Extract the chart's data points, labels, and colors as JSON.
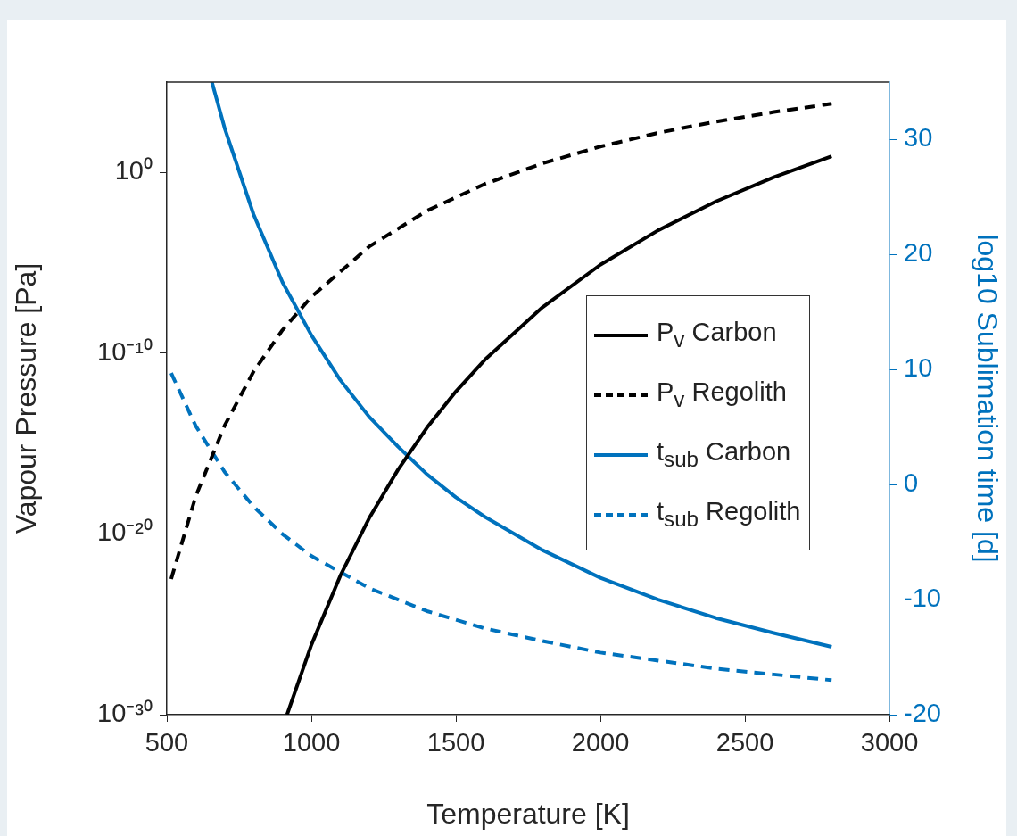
{
  "chart_data": {
    "type": "line",
    "xlabel": "Temperature [K]",
    "ylabel": "Vapour Pressure [Pa]",
    "y2label": "log10 Sublimation time [d]",
    "log": "y",
    "grid": false,
    "legend": "right",
    "marker": "none",
    "xlim": [
      500,
      3000
    ],
    "xticks": [
      500,
      1000,
      1500,
      2000,
      2500,
      3000
    ],
    "ylim": [
      1e-30,
      100000.0
    ],
    "yticks": [
      {
        "value": 1e-30,
        "label": "10⁻³⁰"
      },
      {
        "value": 1e-20,
        "label": "10⁻²⁰"
      },
      {
        "value": 1e-10,
        "label": "10⁻¹⁰"
      },
      {
        "value": 1,
        "label": "10⁰"
      }
    ],
    "y2lim": [
      -20,
      35
    ],
    "y2ticks": [
      -20,
      -10,
      0,
      10,
      20,
      30
    ],
    "series": [
      {
        "name": "P$_{v}$ Carbon",
        "color": "#000000",
        "line_style": "solid",
        "x": [
          916,
          1000,
          1100,
          1200,
          1300,
          1400,
          1500,
          1600,
          1800,
          2000,
          2200,
          2400,
          2600,
          2800
        ],
        "values": [
          1e-30,
          7.2e-27,
          4.8e-23,
          7.4e-20,
          3.6e-17,
          7.6e-15,
          7.6e-13,
          4.3e-11,
          3.5e-08,
          7.8e-06,
          0.00063,
          0.025,
          0.55,
          7.9
        ]
      },
      {
        "name": "P$_{v}$ Regolith",
        "color": "#000000",
        "line_style": "dashed",
        "x": [
          515,
          600,
          700,
          800,
          900,
          1000,
          1200,
          1400,
          1600,
          1800,
          2000,
          2200,
          2400,
          2600,
          2800
        ],
        "values": [
          3.2e-23,
          1.2e-18,
          1e-14,
          9.5e-12,
          1.9e-09,
          1.3e-07,
          7.9e-05,
          0.0076,
          0.23,
          3.2,
          27,
          155,
          650,
          2200,
          6300
        ]
      },
      {
        "name": "t$_{sub}$ Carbon",
        "color": "#0072bd",
        "line_style": "solid",
        "axis": "y2",
        "x": [
          656,
          700,
          800,
          900,
          1000,
          1100,
          1200,
          1300,
          1400,
          1500,
          1600,
          1800,
          2000,
          2200,
          2400,
          2600,
          2800
        ],
        "values": [
          35,
          31,
          23.5,
          17.6,
          13,
          9.1,
          5.9,
          3.3,
          0.9,
          -1.1,
          -2.8,
          -5.7,
          -8.1,
          -10,
          -11.6,
          -12.9,
          -14.1
        ]
      },
      {
        "name": "t$_{sub}$ Regolith",
        "color": "#0072bd",
        "line_style": "dashed",
        "axis": "y2",
        "x": [
          515,
          600,
          700,
          800,
          900,
          1000,
          1200,
          1400,
          1600,
          1800,
          2000,
          2200,
          2400,
          2600,
          2800
        ],
        "values": [
          9.7,
          5.1,
          1.1,
          -1.9,
          -4.3,
          -6.2,
          -9,
          -11,
          -12.5,
          -13.6,
          -14.6,
          -15.3,
          -16,
          -16.5,
          -17
        ]
      }
    ]
  }
}
